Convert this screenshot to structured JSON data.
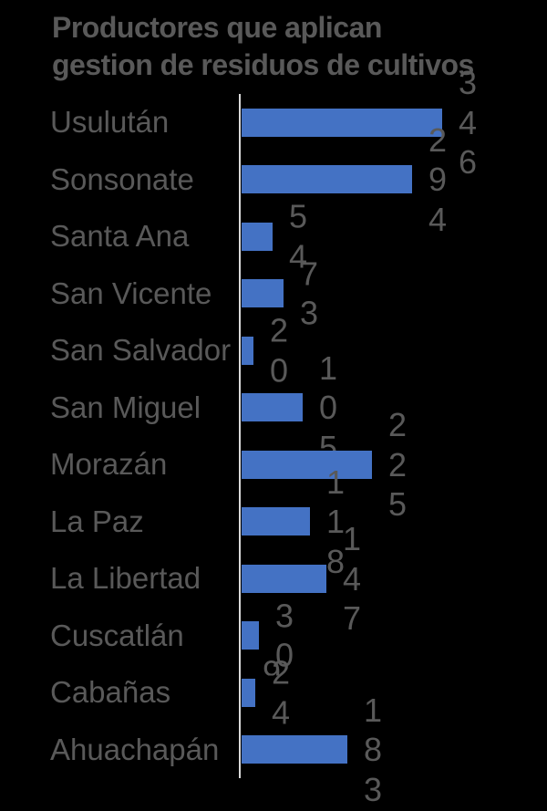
{
  "title": "Productores que aplican\ngestion de residuos de cultivos",
  "colors": {
    "background": "#000000",
    "bar_fill": "#4472C4",
    "text_gray": "#595959",
    "axis_line": "#D9D9D9"
  },
  "chart_data": {
    "type": "bar",
    "orientation": "horizontal",
    "title": "Productores que aplican gestion de residuos de cultivos",
    "categories": [
      "Usulután",
      "Sonsonate",
      "Santa Ana",
      "San Vicente",
      "San Salvador",
      "San Miguel",
      "Morazán",
      "La Paz",
      "La Libertad",
      "Cuscatlán",
      "Cabañas",
      "Ahuachapán"
    ],
    "values": [
      346,
      294,
      54,
      73,
      20,
      105,
      225,
      118,
      147,
      30,
      24,
      183
    ],
    "data_labels": [
      "346",
      "294",
      "54",
      "73",
      "20",
      "105",
      "225",
      "118",
      "147",
      "30",
      "24",
      "183"
    ],
    "data_label_wrap": "vertical-one-digit-per-line",
    "stray_digit": "9",
    "xlabel": "",
    "ylabel": "",
    "xlim": [
      0,
      520
    ],
    "grid": false,
    "legend": "none",
    "x_axis_labels_visible": false
  }
}
